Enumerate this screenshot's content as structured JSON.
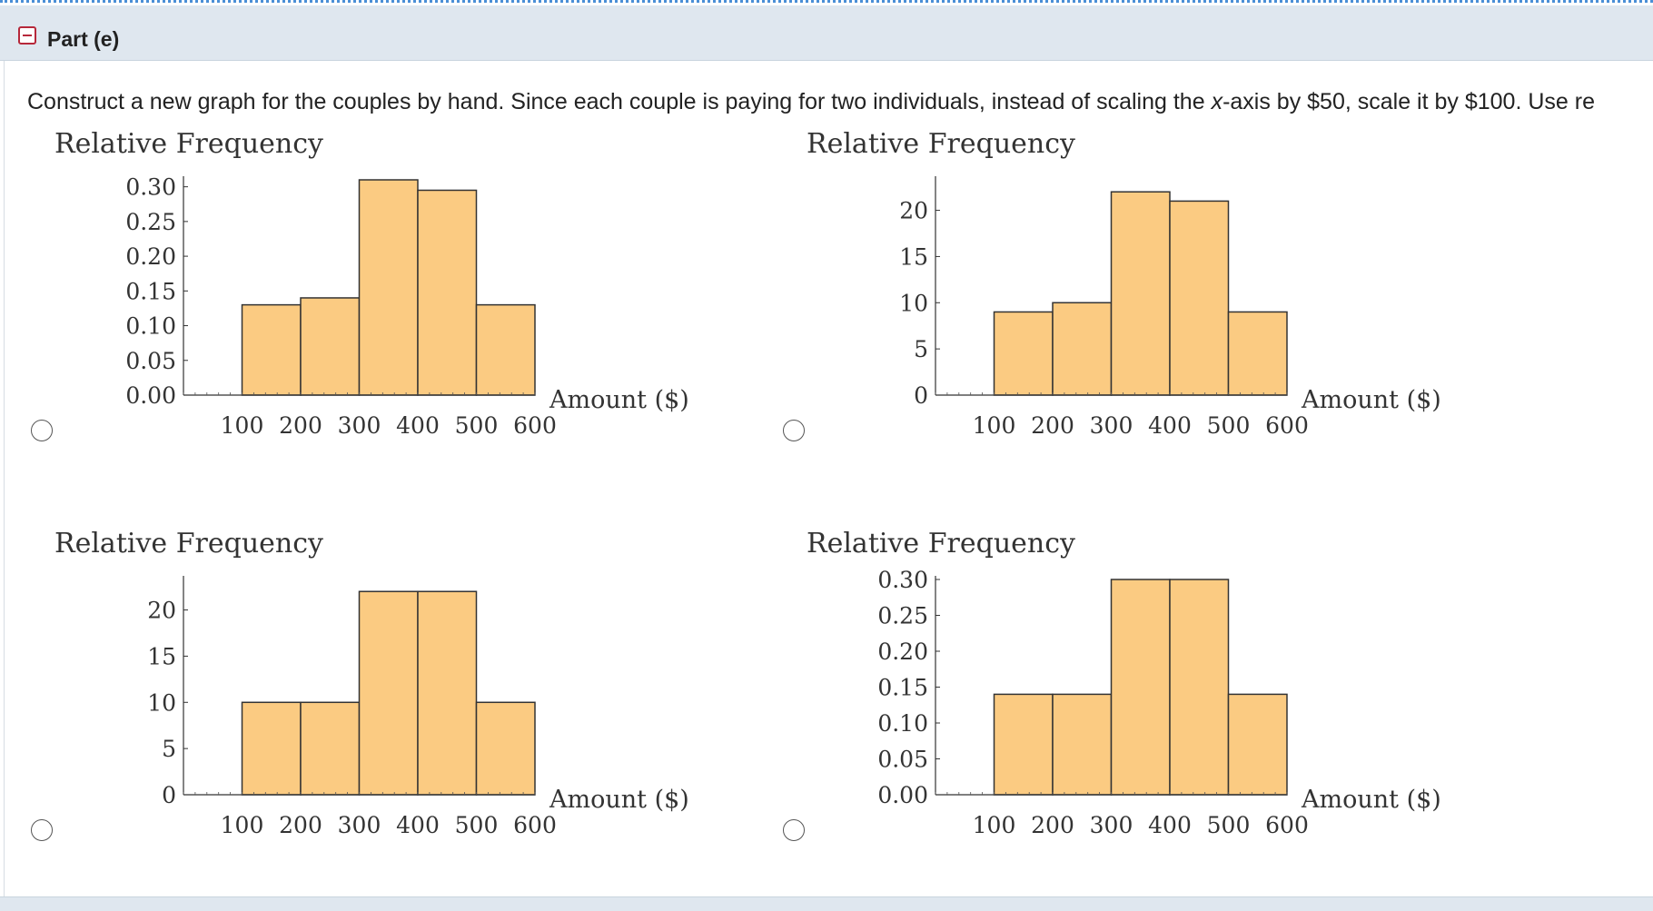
{
  "part": {
    "title": "Part (e)",
    "collapse_icon": "minus-square-icon",
    "accent_color": "#b6283a"
  },
  "instruction": {
    "pre": "Construct a new graph for the couples by hand. Since each couple is paying for two individuals, instead of scaling the ",
    "var": "x",
    "post": "-axis by $50, scale it by $100. Use re"
  },
  "chart_data": [
    {
      "type": "bar",
      "title": "Relative Frequency",
      "xlabel": "Amount ($)",
      "ylabel": "Relative Frequency",
      "x_ticks": [
        "100",
        "200",
        "300",
        "400",
        "500",
        "600"
      ],
      "bin_edges": [
        100,
        200,
        300,
        400,
        500,
        600
      ],
      "values": [
        0.13,
        0.14,
        0.31,
        0.295,
        0.13
      ],
      "y_ticks": [
        "0.00",
        "0.05",
        "0.10",
        "0.15",
        "0.20",
        "0.25",
        "0.30"
      ],
      "y_tick_values": [
        0,
        0.05,
        0.1,
        0.15,
        0.2,
        0.25,
        0.3
      ],
      "ylim": [
        0,
        0.31
      ],
      "xlim": [
        0,
        600
      ],
      "bar_color": "#fbcb82"
    },
    {
      "type": "bar",
      "title": "Relative Frequency",
      "xlabel": "Amount ($)",
      "ylabel": "Relative Frequency",
      "x_ticks": [
        "100",
        "200",
        "300",
        "400",
        "500",
        "600"
      ],
      "bin_edges": [
        100,
        200,
        300,
        400,
        500,
        600
      ],
      "values": [
        9,
        10,
        22,
        21,
        9
      ],
      "y_ticks": [
        "0",
        "5",
        "10",
        "15",
        "20"
      ],
      "y_tick_values": [
        0,
        5,
        10,
        15,
        20
      ],
      "ylim": [
        0,
        23.3
      ],
      "xlim": [
        0,
        600
      ],
      "bar_color": "#fbcb82"
    },
    {
      "type": "bar",
      "title": "Relative Frequency",
      "xlabel": "Amount ($)",
      "ylabel": "Relative Frequency",
      "x_ticks": [
        "100",
        "200",
        "300",
        "400",
        "500",
        "600"
      ],
      "bin_edges": [
        100,
        200,
        300,
        400,
        500,
        600
      ],
      "values": [
        10,
        10,
        22,
        22,
        10
      ],
      "y_ticks": [
        "0",
        "5",
        "10",
        "15",
        "20"
      ],
      "y_tick_values": [
        0,
        5,
        10,
        15,
        20
      ],
      "ylim": [
        0,
        23.3
      ],
      "xlim": [
        0,
        600
      ],
      "bar_color": "#fbcb82"
    },
    {
      "type": "bar",
      "title": "Relative Frequency",
      "xlabel": "Amount ($)",
      "ylabel": "Relative Frequency",
      "x_ticks": [
        "100",
        "200",
        "300",
        "400",
        "500",
        "600"
      ],
      "bin_edges": [
        100,
        200,
        300,
        400,
        500,
        600
      ],
      "values": [
        0.14,
        0.14,
        0.3,
        0.3,
        0.14
      ],
      "y_ticks": [
        "0.00",
        "0.05",
        "0.10",
        "0.15",
        "0.20",
        "0.25",
        "0.30"
      ],
      "y_tick_values": [
        0,
        0.05,
        0.1,
        0.15,
        0.2,
        0.25,
        0.3
      ],
      "ylim": [
        0,
        0.3
      ],
      "xlim": [
        0,
        600
      ],
      "bar_color": "#fbcb82"
    }
  ],
  "options": [
    {
      "selected": false,
      "icon": "radio-icon"
    },
    {
      "selected": false,
      "icon": "radio-icon"
    },
    {
      "selected": false,
      "icon": "radio-icon"
    },
    {
      "selected": false,
      "icon": "radio-icon"
    }
  ]
}
